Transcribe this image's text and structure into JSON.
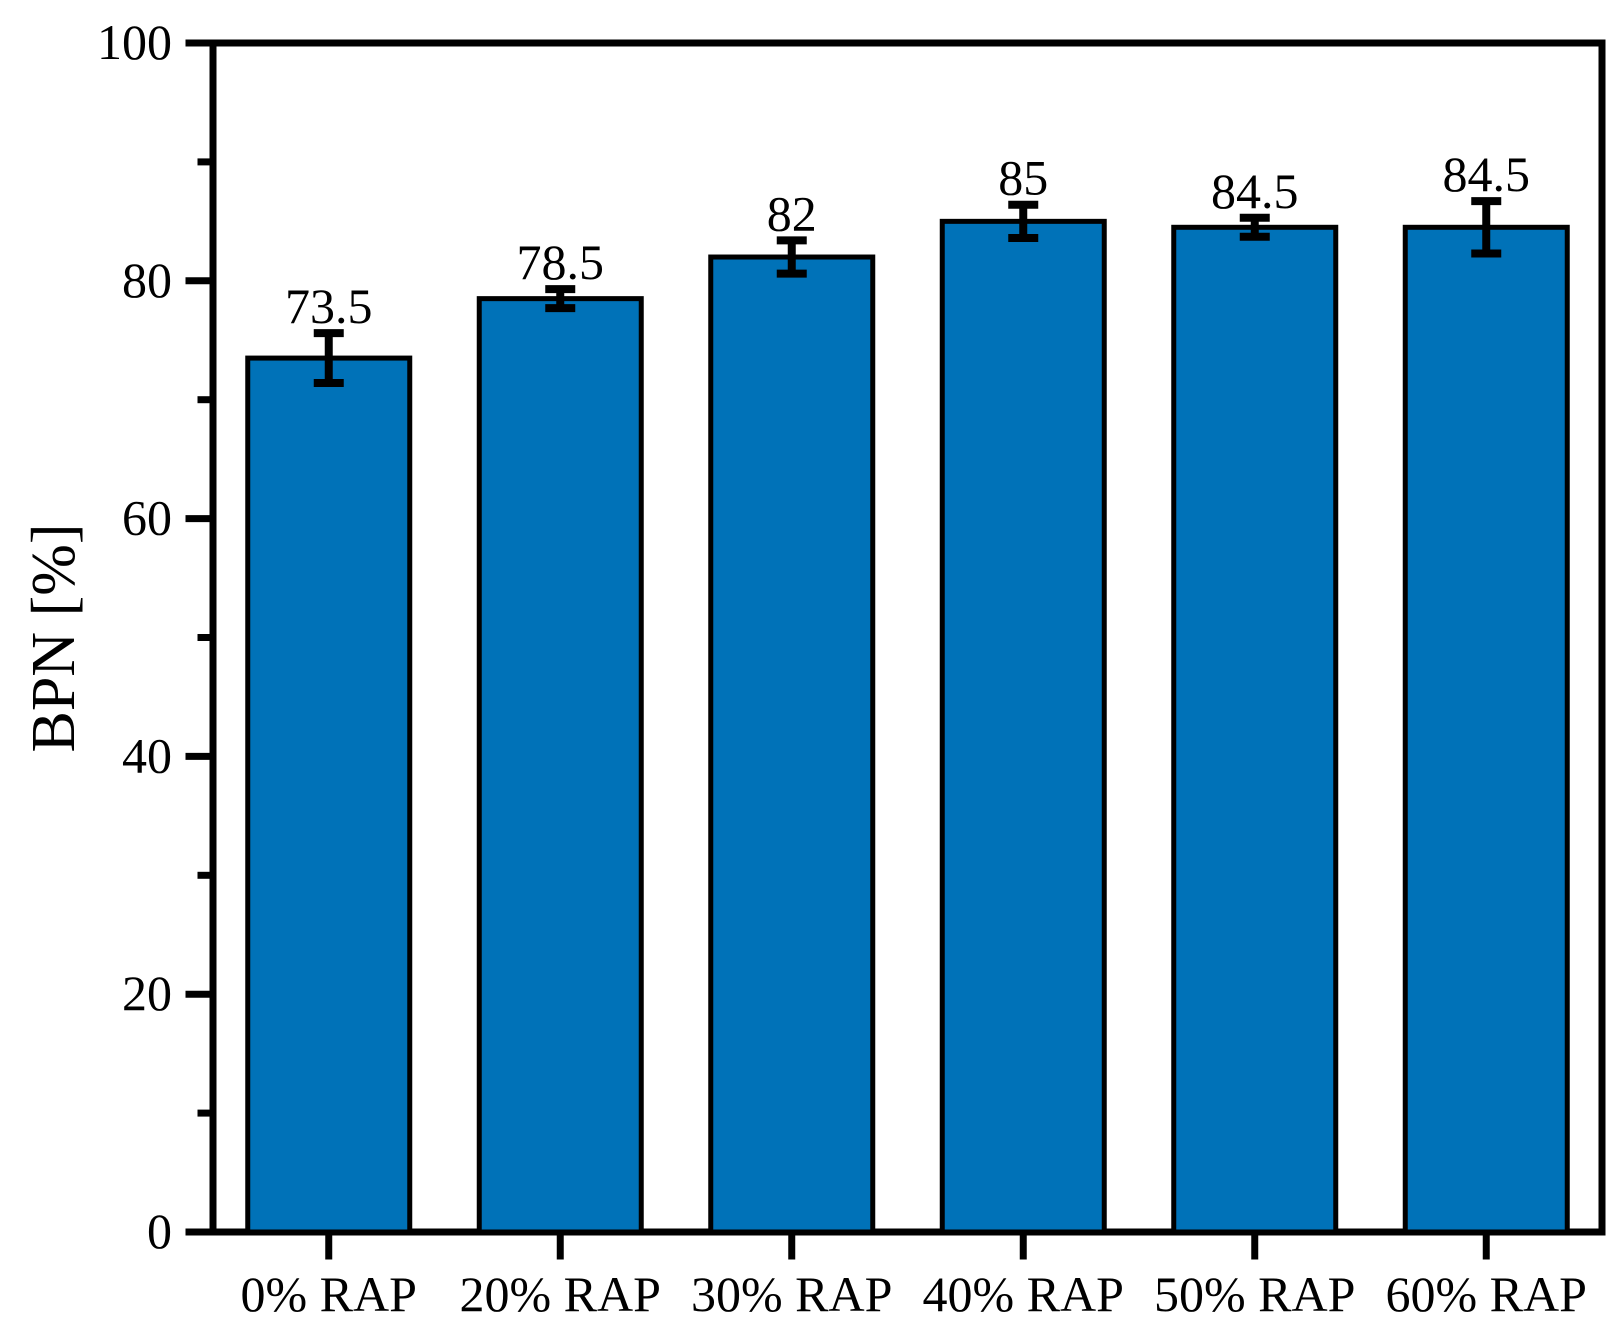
{
  "chart_data": {
    "type": "bar",
    "title": "",
    "xlabel": "",
    "ylabel": "BPN [%]",
    "categories": [
      "0% RAP",
      "20% RAP",
      "30% RAP",
      "40% RAP",
      "50% RAP",
      "60% RAP"
    ],
    "values": [
      73.5,
      78.5,
      82,
      85,
      84.5,
      84.5
    ],
    "value_labels": [
      "73.5",
      "78.5",
      "82",
      "85",
      "84.5",
      "84.5"
    ],
    "errors": [
      2.1,
      0.8,
      1.4,
      1.4,
      0.8,
      2.2
    ],
    "ylim": [
      0,
      100
    ],
    "yticks_major": [
      0,
      20,
      40,
      60,
      80,
      100
    ],
    "ytick_labels": [
      "0",
      "20",
      "40",
      "60",
      "80",
      "100"
    ],
    "yticks_minor": [
      10,
      30,
      50,
      70,
      90
    ],
    "grid": false,
    "legend_position": "none",
    "colors": {
      "bar_fill": "#0072B8",
      "bar_edge": "#000000",
      "error_bar": "#000000",
      "axis": "#000000",
      "text": "#000000",
      "background": "#FFFFFF"
    }
  }
}
